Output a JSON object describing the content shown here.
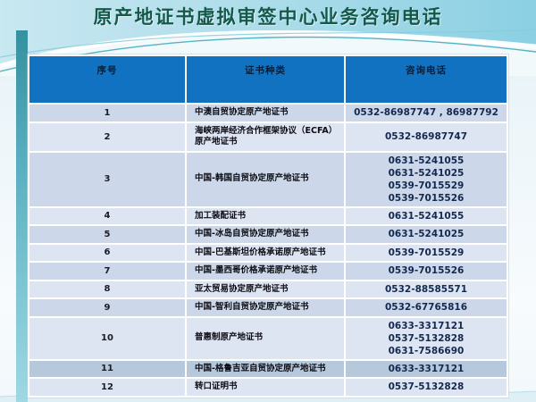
{
  "slide": {
    "title": "原产地证书虚拟审签中心业务咨询电话"
  },
  "table": {
    "headers": [
      "序号",
      "证书种类",
      "咨询电话"
    ],
    "rows": [
      {
        "no": "1",
        "cert": "中澳自贸协定原产地证书",
        "phones": [
          "0532-86987747 , 86987792"
        ]
      },
      {
        "no": "2",
        "cert": "海峡两岸经济合作框架协议（ECFA）原产地证书",
        "phones": [
          "0532-86987747"
        ]
      },
      {
        "no": "3",
        "cert": "中国-韩国自贸协定原产地证书",
        "phones": [
          "0631-5241055",
          "0631-5241025",
          "0539-7015529",
          "0539-7015526"
        ]
      },
      {
        "no": "4",
        "cert": "加工装配证书",
        "phones": [
          "0631-5241055"
        ]
      },
      {
        "no": "5",
        "cert": "中国-冰岛自贸协定原产地证书",
        "phones": [
          "0631-5241025"
        ]
      },
      {
        "no": "6",
        "cert": "中国-巴基斯坦价格承诺原产地证书",
        "phones": [
          "0539-7015529"
        ]
      },
      {
        "no": "7",
        "cert": "中国-墨西哥价格承诺原产地证书",
        "phones": [
          "0539-7015526"
        ]
      },
      {
        "no": "8",
        "cert": "亚太贸易协定原产地证书",
        "phones": [
          "0532-88585571"
        ]
      },
      {
        "no": "9",
        "cert": "中国-智利自贸协定原产地证书",
        "phones": [
          "0532-67765816"
        ]
      },
      {
        "no": "10",
        "cert": "普惠制原产地证书",
        "phones": [
          "0633-3317121",
          "0537-5132828",
          "0631-7586690"
        ]
      },
      {
        "no": "11",
        "cert": "中国-格鲁吉亚自贸协定原产地证书",
        "phones": [
          "0633-3317121"
        ]
      },
      {
        "no": "12",
        "cert": "转口证明书",
        "phones": [
          "0537-5132828"
        ]
      }
    ]
  },
  "colors": {
    "header_bg": "#1272c2",
    "row_light": "#dde4f2",
    "row_mid": "#ccd8e9",
    "row_dark": "#b6c8db",
    "title_text": "#14594b",
    "accent_teal": "#57aebf",
    "phone_text": "#142950"
  }
}
